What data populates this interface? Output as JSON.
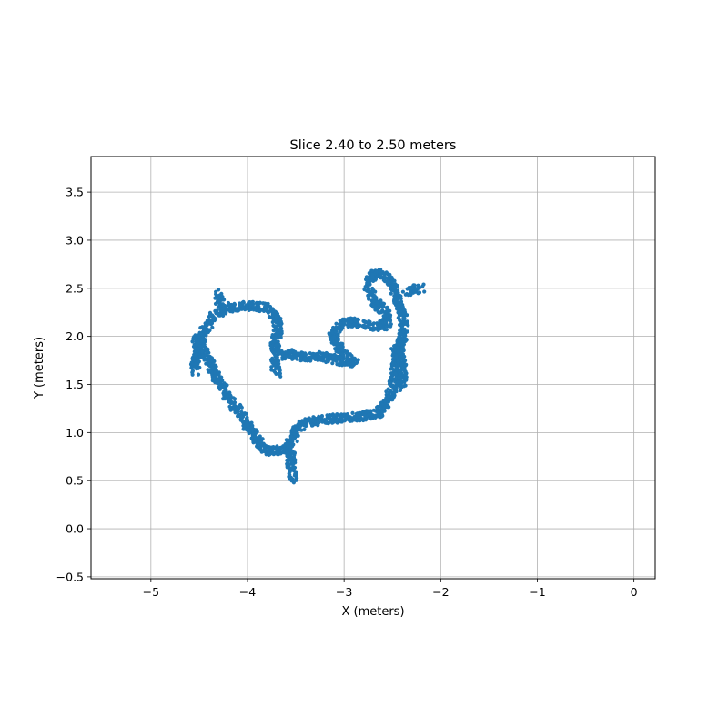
{
  "chart_data": {
    "type": "scatter",
    "title": "Slice 2.40 to 2.50 meters",
    "xlabel": "X (meters)",
    "ylabel": "Y (meters)",
    "xlim": [
      -5.62,
      0.22
    ],
    "ylim": [
      -0.52,
      3.87
    ],
    "xticks": [
      -5,
      -4,
      -3,
      -2,
      -1,
      0
    ],
    "xtick_labels": [
      "−5",
      "−4",
      "−3",
      "−2",
      "−1",
      "0"
    ],
    "yticks": [
      -0.5,
      0.0,
      0.5,
      1.0,
      1.5,
      2.0,
      2.5,
      3.0,
      3.5
    ],
    "ytick_labels": [
      "−0.5",
      "0.0",
      "0.5",
      "1.0",
      "1.5",
      "2.0",
      "2.5",
      "3.0",
      "3.5"
    ],
    "grid": true,
    "point_color": "#1f77b4",
    "series": [
      {
        "paths": [
          [
            [
              -4.55,
              1.62
            ],
            [
              -4.52,
              1.85
            ],
            [
              -4.45,
              2.05
            ],
            [
              -4.35,
              2.22
            ],
            [
              -4.2,
              2.3
            ],
            [
              -4.0,
              2.32
            ],
            [
              -3.8,
              2.3
            ],
            [
              -3.7,
              2.2
            ],
            [
              -3.68,
              2.05
            ],
            [
              -3.72,
              1.9
            ],
            [
              -3.7,
              1.8
            ],
            [
              -3.55,
              1.82
            ],
            [
              -3.4,
              1.78
            ],
            [
              -3.25,
              1.8
            ],
            [
              -3.05,
              1.75
            ],
            [
              -2.92,
              1.72
            ]
          ],
          [
            [
              -4.55,
              1.98
            ],
            [
              -4.45,
              1.85
            ],
            [
              -4.4,
              1.72
            ],
            [
              -4.3,
              1.55
            ],
            [
              -4.2,
              1.35
            ],
            [
              -4.08,
              1.2
            ],
            [
              -3.95,
              1.0
            ],
            [
              -3.85,
              0.85
            ],
            [
              -3.75,
              0.8
            ],
            [
              -3.6,
              0.83
            ],
            [
              -3.52,
              0.95
            ],
            [
              -3.5,
              1.05
            ],
            [
              -3.4,
              1.1
            ],
            [
              -3.2,
              1.14
            ],
            [
              -3.0,
              1.15
            ],
            [
              -2.8,
              1.17
            ],
            [
              -2.65,
              1.2
            ],
            [
              -2.55,
              1.32
            ],
            [
              -2.5,
              1.45
            ],
            [
              -2.48,
              1.6
            ],
            [
              -2.45,
              1.78
            ],
            [
              -2.4,
              1.95
            ],
            [
              -2.38,
              2.1
            ],
            [
              -2.4,
              2.25
            ],
            [
              -2.45,
              2.4
            ],
            [
              -2.5,
              2.55
            ],
            [
              -2.6,
              2.65
            ],
            [
              -2.7,
              2.65
            ],
            [
              -2.75,
              2.5
            ],
            [
              -2.68,
              2.35
            ],
            [
              -2.58,
              2.25
            ],
            [
              -2.55,
              2.15
            ],
            [
              -2.62,
              2.1
            ],
            [
              -2.75,
              2.12
            ],
            [
              -2.9,
              2.15
            ],
            [
              -3.05,
              2.12
            ],
            [
              -3.12,
              2.0
            ],
            [
              -3.05,
              1.88
            ],
            [
              -2.95,
              1.78
            ],
            [
              -2.88,
              1.72
            ]
          ],
          [
            [
              -3.55,
              0.8
            ],
            [
              -3.55,
              0.65
            ],
            [
              -3.52,
              0.5
            ]
          ],
          [
            [
              -2.35,
              2.45
            ],
            [
              -2.3,
              2.48
            ],
            [
              -2.2,
              2.5
            ]
          ],
          [
            [
              -3.72,
              1.75
            ],
            [
              -3.7,
              1.62
            ]
          ],
          [
            [
              -4.3,
              2.45
            ],
            [
              -4.28,
              2.35
            ]
          ],
          [
            [
              -2.48,
              1.9
            ],
            [
              -2.42,
              1.78
            ],
            [
              -2.38,
              1.62
            ],
            [
              -2.42,
              1.48
            ]
          ]
        ]
      }
    ]
  }
}
